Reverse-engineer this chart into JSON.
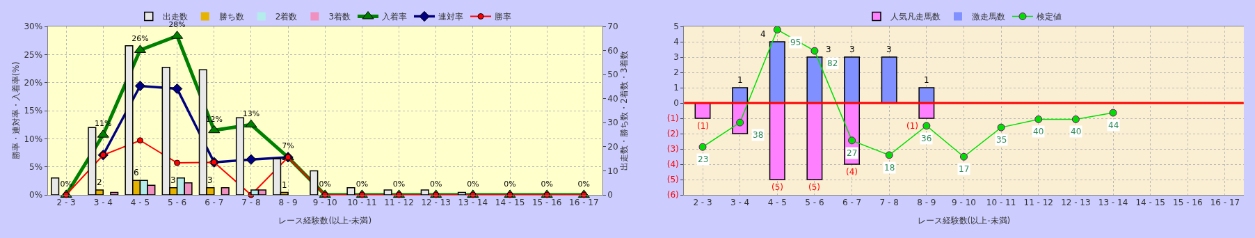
{
  "chart_data": [
    {
      "type": "bar",
      "xlabel": "レース経験数(以上-未満)",
      "ylabel": "勝率・連対率・入着率(%)",
      "y2label": "出走数・勝ち数・2着数・3着数",
      "categories": [
        "2 - 3",
        "3 - 4",
        "4 - 5",
        "5 - 6",
        "6 - 7",
        "7 - 8",
        "8 - 9",
        "9 - 10",
        "10 - 11",
        "11 - 12",
        "12 - 13",
        "13 - 14",
        "14 - 15",
        "15 - 16",
        "16 - 17"
      ],
      "ylim": [
        0,
        30
      ],
      "yticks": [
        {
          "value": 0,
          "label": "0%"
        },
        {
          "value": 5,
          "label": "5%"
        },
        {
          "value": 10,
          "label": "10%"
        },
        {
          "value": 15,
          "label": "15%"
        },
        {
          "value": 20,
          "label": "20%"
        },
        {
          "value": 25,
          "label": "25%"
        },
        {
          "value": 30,
          "label": "30%"
        }
      ],
      "y2lim": [
        0,
        70
      ],
      "y2ticks": [
        0,
        10,
        20,
        30,
        40,
        50,
        60,
        70
      ],
      "grid": true,
      "legend": "top",
      "series": [
        {
          "name": "出走数",
          "axis": "y2",
          "color": "#e8e8e8",
          "values": [
            7,
            28,
            62,
            53,
            52,
            32,
            15,
            10,
            3,
            2,
            2,
            1,
            0,
            0,
            0
          ]
        },
        {
          "name": "勝ち数",
          "axis": "y2",
          "color": "#e6b400",
          "values": [
            0,
            2,
            6,
            3,
            3,
            0,
            1,
            0,
            0,
            0,
            0,
            0,
            0,
            0,
            0
          ],
          "value_labels": [
            null,
            "2",
            "6",
            "3",
            "3",
            null,
            "1",
            null,
            null,
            null,
            null,
            null,
            null,
            null,
            null
          ]
        },
        {
          "name": "2着数",
          "axis": "y2",
          "color": "#b4ecec",
          "values": [
            0,
            0,
            6,
            7,
            0,
            2,
            0,
            0,
            0,
            0,
            0,
            0,
            0,
            0,
            0
          ]
        },
        {
          "name": "3着数",
          "axis": "y2",
          "color": "#f090c0",
          "values": [
            0,
            1,
            4,
            5,
            3,
            2,
            0,
            0,
            0,
            0,
            0,
            0,
            0,
            0,
            0
          ]
        },
        {
          "name": "入着率",
          "type": "line",
          "axis": "y",
          "color": "#008000",
          "marker": "triangle",
          "values": [
            0,
            10.7,
            25.8,
            28.3,
            11.5,
            12.5,
            6.7,
            0,
            0,
            0,
            0,
            0,
            0,
            0,
            0
          ],
          "value_labels": [
            "0%",
            "11%",
            "26%",
            "28%",
            "12%",
            "13%",
            "7%",
            "0%",
            "0%",
            "0%",
            "0%",
            "0%",
            "0%",
            "0%",
            "0%"
          ]
        },
        {
          "name": "連対率",
          "type": "line",
          "axis": "y",
          "color": "#000080",
          "marker": "diamond",
          "values": [
            null,
            7.1,
            19.4,
            18.9,
            5.8,
            6.3,
            6.7,
            null,
            null,
            null,
            null,
            null,
            null,
            null,
            null
          ]
        },
        {
          "name": "勝率",
          "type": "line",
          "axis": "y",
          "color": "#ff0000",
          "marker": "circle",
          "values": [
            0,
            7.1,
            9.7,
            5.7,
            5.8,
            0,
            6.7,
            0,
            0,
            0,
            0,
            0,
            0,
            0,
            0
          ]
        }
      ]
    },
    {
      "type": "bar",
      "xlabel": "レース経験数(以上-未満)",
      "stacked": true,
      "categories": [
        "2 - 3",
        "3 - 4",
        "4 - 5",
        "5 - 6",
        "6 - 7",
        "7 - 8",
        "8 - 9",
        "9 - 10",
        "10 - 11",
        "11 - 12",
        "12 - 13",
        "13 - 14",
        "14 - 15",
        "15 - 16",
        "16 - 17"
      ],
      "ylim": [
        -6,
        5
      ],
      "yticks": [
        5,
        4,
        3,
        2,
        1,
        0,
        {
          "value": -1,
          "label": "(1)"
        },
        {
          "value": -2,
          "label": "(2)"
        },
        {
          "value": -3,
          "label": "(3)"
        },
        {
          "value": -4,
          "label": "(4)"
        },
        {
          "value": -5,
          "label": "(5)"
        },
        {
          "value": -6,
          "label": "(6)"
        }
      ],
      "y2lim": [
        -6.4,
        97
      ],
      "grid": true,
      "legend": "top",
      "ref_lines": [
        {
          "axis": "y",
          "value": 0,
          "color": "#ff0000"
        }
      ],
      "series": [
        {
          "name": "人気凡走馬数",
          "color": "#ff80ff",
          "values": [
            -1,
            -2,
            -5,
            -5,
            -4,
            0,
            -1,
            0,
            0,
            0,
            0,
            0,
            0,
            0,
            0
          ],
          "value_labels": [
            "(1)",
            null,
            "(5)",
            "(5)",
            "(4)",
            null,
            "(1)",
            null,
            null,
            null,
            null,
            null,
            null,
            null,
            null
          ]
        },
        {
          "name": "激走馬数",
          "color": "#8090ff",
          "values": [
            0,
            1,
            4,
            3,
            3,
            3,
            1,
            0,
            0,
            0,
            0,
            0,
            0,
            0,
            0
          ],
          "value_labels": [
            null,
            "1",
            "4",
            "3",
            "3",
            "3",
            "1",
            null,
            null,
            null,
            null,
            null,
            null,
            null,
            null
          ]
        },
        {
          "name": "検定値",
          "type": "line",
          "axis": "y2",
          "color": "#00e000",
          "marker": "circle",
          "values": [
            23,
            38,
            95,
            82,
            27,
            18,
            36,
            17,
            35,
            40,
            40,
            44,
            null,
            null,
            null
          ],
          "value_labels": [
            "23",
            "38",
            "95",
            "82",
            "27",
            "18",
            "36",
            "17",
            "35",
            "40",
            "40",
            "44",
            null,
            null,
            null
          ]
        }
      ]
    }
  ]
}
